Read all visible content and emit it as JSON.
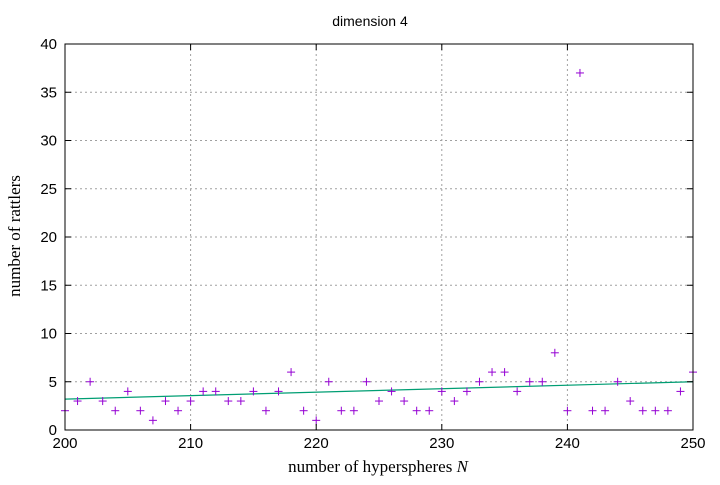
{
  "chart_data": {
    "type": "scatter",
    "title": "dimension 4",
    "xlabel": "number of hyperspheres ",
    "xlabel_var": "N",
    "ylabel": "number of rattlers",
    "xlim": [
      200,
      250
    ],
    "ylim": [
      0,
      40
    ],
    "x_ticks": [
      200,
      210,
      220,
      230,
      240,
      250
    ],
    "y_ticks": [
      0,
      5,
      10,
      15,
      20,
      25,
      30,
      35,
      40
    ],
    "x_tick_labels": [
      "200",
      "210",
      "220",
      "230",
      "240",
      "250"
    ],
    "y_tick_labels": [
      "0",
      "5",
      "10",
      "15",
      "20",
      "25",
      "30",
      "35",
      "40"
    ],
    "grid": true,
    "legend": "none",
    "series": [
      {
        "marker": "plus",
        "color": "#9400d3",
        "points": [
          [
            200,
            2
          ],
          [
            201,
            3
          ],
          [
            202,
            5
          ],
          [
            203,
            3
          ],
          [
            204,
            2
          ],
          [
            205,
            4
          ],
          [
            206,
            2
          ],
          [
            207,
            1
          ],
          [
            208,
            3
          ],
          [
            209,
            2
          ],
          [
            210,
            3
          ],
          [
            211,
            4
          ],
          [
            212,
            4
          ],
          [
            213,
            3
          ],
          [
            214,
            3
          ],
          [
            215,
            4
          ],
          [
            216,
            2
          ],
          [
            217,
            4
          ],
          [
            218,
            6
          ],
          [
            219,
            2
          ],
          [
            220,
            1
          ],
          [
            221,
            5
          ],
          [
            222,
            2
          ],
          [
            223,
            2
          ],
          [
            224,
            5
          ],
          [
            225,
            3
          ],
          [
            226,
            4
          ],
          [
            227,
            3
          ],
          [
            228,
            2
          ],
          [
            229,
            2
          ],
          [
            230,
            4
          ],
          [
            231,
            3
          ],
          [
            232,
            4
          ],
          [
            233,
            5
          ],
          [
            234,
            6
          ],
          [
            235,
            6
          ],
          [
            236,
            4
          ],
          [
            237,
            5
          ],
          [
            238,
            5
          ],
          [
            239,
            8
          ],
          [
            240,
            2
          ],
          [
            241,
            37
          ],
          [
            242,
            2
          ],
          [
            243,
            2
          ],
          [
            244,
            5
          ],
          [
            245,
            3
          ],
          [
            246,
            2
          ],
          [
            247,
            2
          ],
          [
            248,
            2
          ],
          [
            249,
            4
          ],
          [
            250,
            6
          ]
        ]
      },
      {
        "type": "line",
        "color": "#009e73",
        "x": [
          200,
          250
        ],
        "y": [
          3.2,
          5.0
        ]
      }
    ]
  }
}
